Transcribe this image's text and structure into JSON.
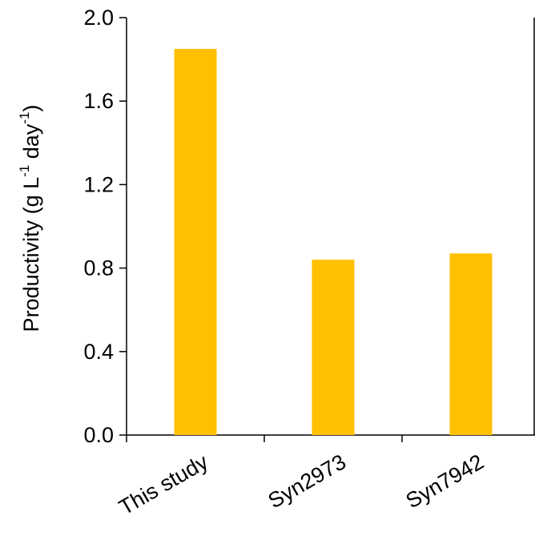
{
  "chart_data": {
    "type": "bar",
    "categories": [
      "This study",
      "Syn2973",
      "Syn7942"
    ],
    "values": [
      1.85,
      0.84,
      0.87
    ],
    "ylabel": {
      "text": "Productivity (g L",
      "exp1": "-1",
      "mid": " day",
      "exp2": "-1",
      "end": ")"
    },
    "ylim": [
      0.0,
      2.0
    ],
    "yticks": [
      "0.0",
      "0.4",
      "0.8",
      "1.2",
      "1.6",
      "2.0"
    ],
    "bar_color": "#FFC000",
    "grid": false,
    "legend": "none"
  }
}
